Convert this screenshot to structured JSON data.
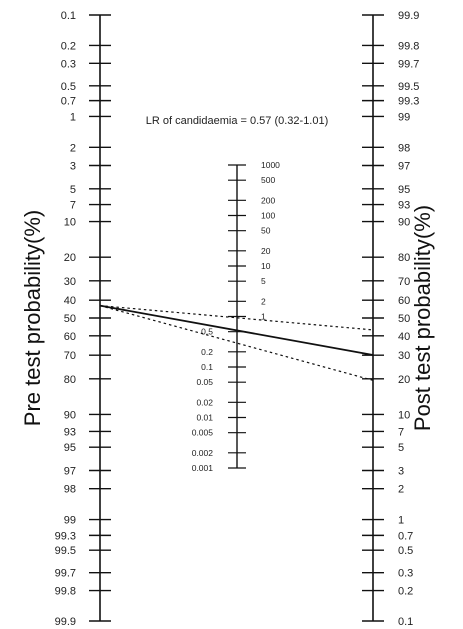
{
  "chart_data": {
    "type": "nomogram",
    "title": "",
    "annotation": "LR of candidaemia = 0.57 (0.32-1.01)",
    "left_axis": {
      "label": "Pre test probability(%)",
      "ticks": [
        "0.1",
        "0.2",
        "0.3",
        "0.5",
        "0.7",
        "1",
        "2",
        "3",
        "5",
        "7",
        "10",
        "20",
        "30",
        "40",
        "50",
        "60",
        "70",
        "80",
        "90",
        "93",
        "95",
        "97",
        "98",
        "99",
        "99.3",
        "99.5",
        "99.7",
        "99.8",
        "99.9"
      ]
    },
    "middle_axis": {
      "label": "",
      "ticks": [
        "1000",
        "500",
        "200",
        "100",
        "50",
        "20",
        "10",
        "5",
        "2",
        "1",
        "0.5",
        "0.2",
        "0.1",
        "0.05",
        "0.02",
        "0.01",
        "0.005",
        "0.002",
        "0.001"
      ]
    },
    "right_axis": {
      "label": "Post test probability(%)",
      "ticks": [
        "99.9",
        "99.8",
        "99.7",
        "99.5",
        "99.3",
        "99",
        "98",
        "97",
        "95",
        "93",
        "90",
        "80",
        "70",
        "60",
        "50",
        "40",
        "30",
        "20",
        "10",
        "7",
        "5",
        "3",
        "2",
        "1",
        "0.7",
        "0.5",
        "0.3",
        "0.2",
        "0.1"
      ]
    },
    "pre_test_probability": 43,
    "likelihood_ratio": 0.57,
    "likelihood_ratio_ci": [
      0.32,
      1.01
    ],
    "lines": [
      {
        "style": "solid",
        "from_pre_test": 43,
        "lr": 0.57
      },
      {
        "style": "dotted",
        "from_pre_test": 43,
        "lr": 0.32
      },
      {
        "style": "dotted",
        "from_pre_test": 43,
        "lr": 1.01
      }
    ]
  }
}
